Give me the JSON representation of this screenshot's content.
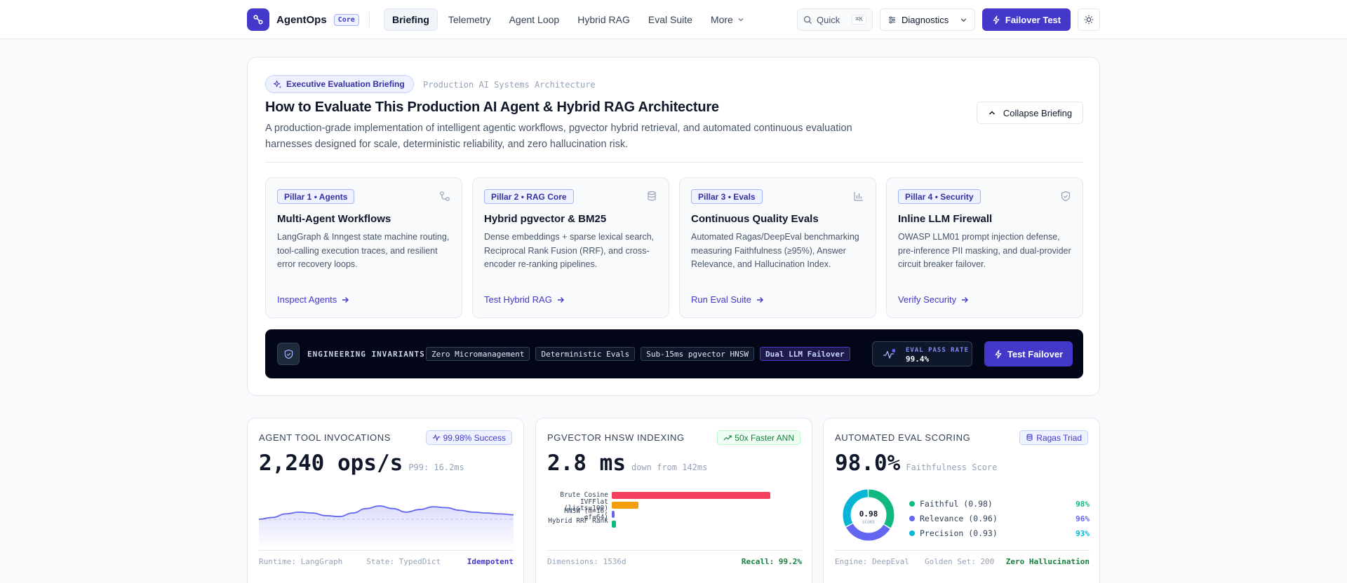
{
  "header": {
    "brand_name": "AgentOps",
    "brand_badge": "Core",
    "nav": [
      "Briefing",
      "Telemetry",
      "Agent Loop",
      "Hybrid RAG",
      "Eval Suite",
      "More"
    ],
    "quick_label": "Quick",
    "quick_shortcut": "⌘K",
    "diagnostics_label": "Diagnostics",
    "failover_label": "Failover Test"
  },
  "briefing": {
    "badge": "Executive Evaluation Briefing",
    "subtitle": "Production AI Systems Architecture",
    "title": "How to Evaluate This Production AI Agent & Hybrid RAG Architecture",
    "description": "A production-grade implementation of intelligent agentic workflows, pgvector hybrid retrieval, and automated continuous evaluation harnesses designed for scale, deterministic reliability, and zero hallucination risk.",
    "collapse_label": "Collapse Briefing",
    "pillars": [
      {
        "tag": "Pillar 1 • Agents",
        "icon": "workflow-icon",
        "title": "Multi-Agent Workflows",
        "desc": "LangGraph & Inngest state machine routing, tool-calling execution traces, and resilient error recovery loops.",
        "link": "Inspect Agents"
      },
      {
        "tag": "Pillar 2 • RAG Core",
        "icon": "database-icon",
        "title": "Hybrid pgvector & BM25",
        "desc": "Dense embeddings + sparse lexical search, Reciprocal Rank Fusion (RRF), and cross-encoder re-ranking pipelines.",
        "link": "Test Hybrid RAG"
      },
      {
        "tag": "Pillar 3 • Evals",
        "icon": "bar-chart-icon",
        "title": "Continuous Quality Evals",
        "desc": "Automated Ragas/DeepEval benchmarking measuring Faithfulness (≥95%), Answer Relevance, and Hallucination Index.",
        "link": "Run Eval Suite"
      },
      {
        "tag": "Pillar 4 • Security",
        "icon": "shield-check-icon",
        "title": "Inline LLM Firewall",
        "desc": "OWASP LLM01 prompt injection defense, pre-inference PII masking, and dual-provider circuit breaker failover.",
        "link": "Verify Security"
      }
    ],
    "invariants": {
      "label": "ENGINEERING INVARIANTS",
      "chips": [
        "Zero Micromanagement",
        "Deterministic Evals",
        "Sub-15ms pgvector HNSW",
        "Dual LLM Failover"
      ],
      "pass_rate_label": "EVAL PASS RATE",
      "pass_rate_value": "99.4%",
      "test_failover_label": "Test Failover"
    }
  },
  "metrics": {
    "tools": {
      "label": "AGENT TOOL INVOCATIONS",
      "pill": "99.98% Success",
      "value": "2,240 ops/s",
      "sub": "P99: 16.2ms",
      "footer_left": "Runtime: LangGraph",
      "footer_mid": "State: TypedDict",
      "footer_right": "Idempotent",
      "sparkline": [
        30,
        32,
        36,
        38,
        37,
        34,
        33,
        37,
        42,
        45,
        42,
        38,
        41,
        44,
        43,
        40,
        38,
        37,
        36,
        35
      ],
      "baseline": 30
    },
    "hnsw": {
      "label": "PGVECTOR HNSW INDEXING",
      "pill": "50x Faster ANN",
      "value": "2.8 ms",
      "sub": "down from 142ms",
      "footer_left": "Dimensions: 1536d",
      "footer_right": "Recall: 99.2%",
      "bars": [
        {
          "label": "Brute Cosine",
          "value": 142,
          "color": "#f43f5e"
        },
        {
          "label": "IVFFlat (lists=100)",
          "value": 24,
          "color": "#f59e0b"
        },
        {
          "label": "HNSW (m=16, ef=64)",
          "value": 2.8,
          "color": "#6366f1"
        },
        {
          "label": "Hybrid RRF Rank",
          "value": 3.6,
          "color": "#10b981"
        }
      ]
    },
    "eval": {
      "label": "AUTOMATED EVAL SCORING",
      "pill": "Ragas Triad",
      "value": "98.0%",
      "sub": "Faithfulness Score",
      "donut_value": "0.98",
      "donut_label": "SCORE",
      "legend": [
        {
          "label": "Faithful (0.98)",
          "pct": "98%",
          "color": "#10b981",
          "value": 0.98
        },
        {
          "label": "Relevance (0.96)",
          "pct": "96%",
          "color": "#6366f1",
          "value": 0.96
        },
        {
          "label": "Precision (0.93)",
          "pct": "93%",
          "color": "#06b6d4",
          "value": 0.93
        }
      ],
      "footer_left": "Engine: DeepEval",
      "footer_mid": "Golden Set: 200",
      "footer_right": "Zero Hallucination"
    }
  }
}
